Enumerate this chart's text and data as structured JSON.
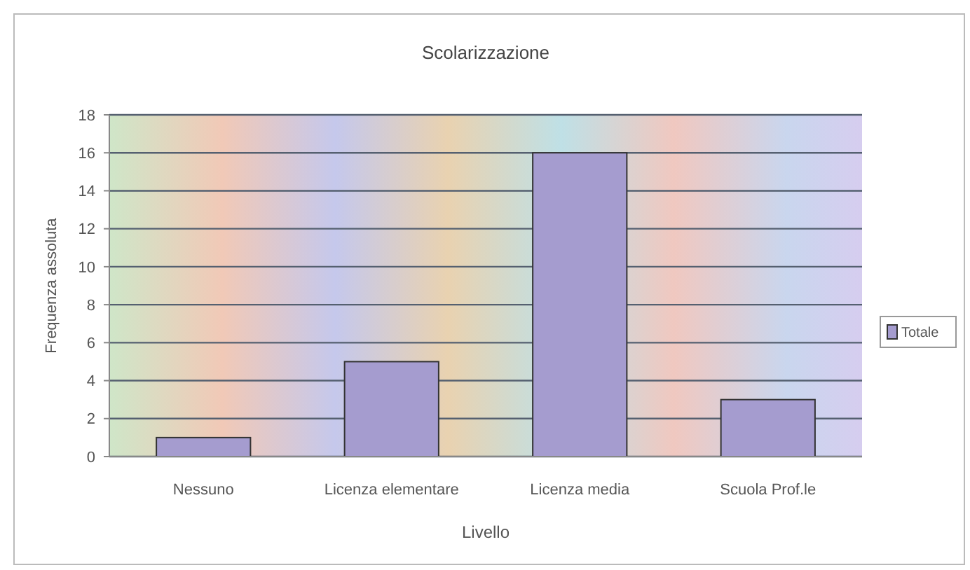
{
  "chart_data": {
    "type": "bar",
    "title": "Scolarizzazione",
    "xlabel": "Livello",
    "ylabel": "Frequenza assoluta",
    "categories": [
      "Nessuno",
      "Licenza elementare",
      "Licenza media",
      "Scuola Prof.le"
    ],
    "series": [
      {
        "name": "Totale",
        "color": "#a59ccf",
        "values": [
          1,
          5,
          16,
          3
        ]
      }
    ],
    "ylim": [
      0,
      18
    ],
    "yticks": [
      0,
      2,
      4,
      6,
      8,
      10,
      12,
      14,
      16,
      18
    ],
    "grid": "y",
    "legend": "right"
  }
}
